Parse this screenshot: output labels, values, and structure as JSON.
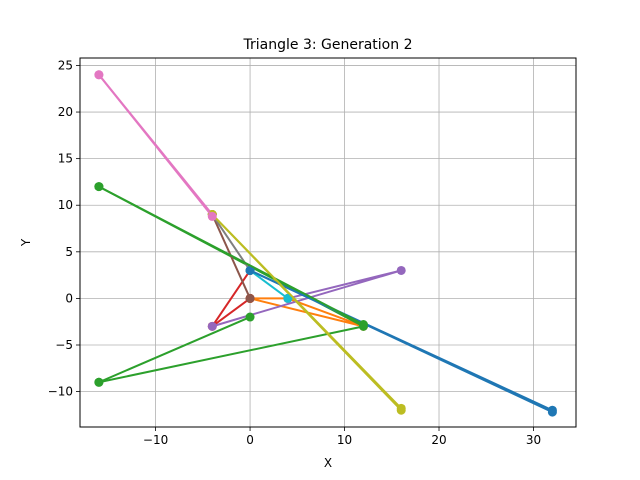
{
  "chart_data": {
    "type": "line",
    "title": "Triangle 3: Generation 2",
    "xlabel": "X",
    "ylabel": "Y",
    "xlim": [
      -18,
      34.5
    ],
    "ylim": [
      -13.8,
      25.8
    ],
    "xticks": [
      -10,
      0,
      10,
      20,
      30
    ],
    "yticks": [
      -10,
      -5,
      0,
      5,
      10,
      15,
      20,
      25
    ],
    "grid": true,
    "series": [
      {
        "color": "#1f77b4",
        "points": [
          [
            0,
            3
          ],
          [
            32,
            -12
          ]
        ]
      },
      {
        "color": "#ff7f0e",
        "points": [
          [
            0,
            0
          ],
          [
            4,
            0
          ],
          [
            12,
            -3
          ],
          [
            0,
            0
          ]
        ]
      },
      {
        "color": "#2ca02c",
        "points": [
          [
            -16,
            12
          ],
          [
            12,
            -3
          ],
          [
            -16,
            -9
          ]
        ]
      },
      {
        "color": "#d62728",
        "points": [
          [
            0,
            3
          ],
          [
            -4,
            -3
          ],
          [
            0,
            0
          ]
        ]
      },
      {
        "color": "#9467bd",
        "points": [
          [
            -4,
            -3
          ],
          [
            16,
            3
          ],
          [
            4,
            0
          ]
        ]
      },
      {
        "color": "#8c564b",
        "points": [
          [
            0,
            0
          ],
          [
            -4,
            9
          ]
        ]
      },
      {
        "color": "#e377c2",
        "points": [
          [
            -16,
            24
          ],
          [
            -4,
            9
          ]
        ]
      },
      {
        "color": "#7f7f7f",
        "points": [
          [
            -4,
            9
          ],
          [
            0,
            3
          ]
        ]
      },
      {
        "color": "#bcbd22",
        "points": [
          [
            -4,
            9
          ],
          [
            16,
            -12
          ]
        ]
      },
      {
        "color": "#17becf",
        "points": [
          [
            0,
            3
          ],
          [
            4,
            0
          ]
        ]
      },
      {
        "color": "#1f77b4",
        "points": [
          [
            0,
            3
          ],
          [
            32,
            -12.2
          ]
        ]
      },
      {
        "color": "#2ca02c",
        "points": [
          [
            -16,
            12
          ],
          [
            12,
            -2.8
          ]
        ]
      },
      {
        "color": "#bcbd22",
        "points": [
          [
            -4,
            9
          ],
          [
            16,
            -11.8
          ]
        ]
      },
      {
        "color": "#e377c2",
        "points": [
          [
            -16,
            24
          ],
          [
            -4,
            8.8
          ]
        ]
      },
      {
        "color": "#2ca02c",
        "points": [
          [
            -16,
            -9
          ],
          [
            0,
            -2
          ]
        ]
      }
    ]
  }
}
